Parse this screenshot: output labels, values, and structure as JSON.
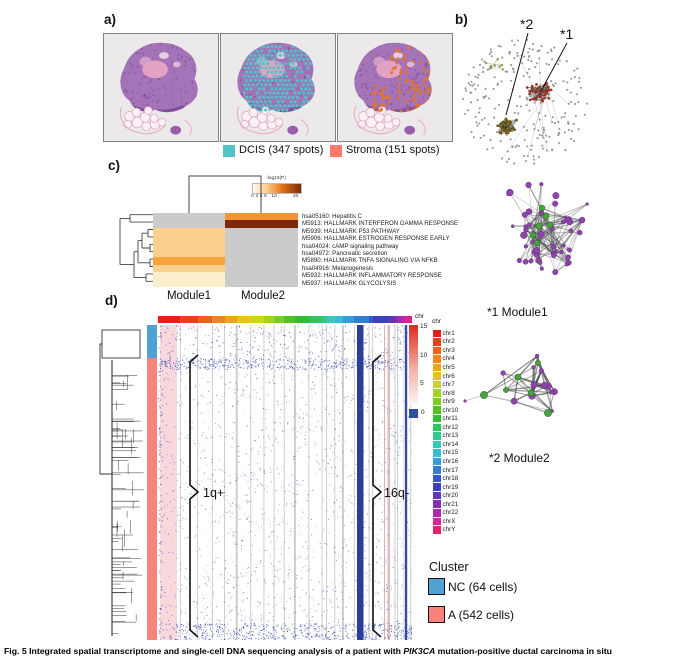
{
  "figure": {
    "caption_prefix": "Fig. 5 Integrated spatial transcriptome and single-cell DNA sequencing analysis of a patient with ",
    "caption_italic": "PIK3CA",
    "caption_suffix": " mutation-positive ductal carcinoma in situ"
  },
  "panel_a": {
    "label": "a)",
    "legend": [
      {
        "name": "DCIS",
        "label": "DCIS (347 spots)",
        "color": "#4FC4C6"
      },
      {
        "name": "Stroma",
        "label": "Stroma (151 spots)",
        "color": "#F9796E"
      }
    ]
  },
  "panel_b": {
    "label": "b)",
    "callout_1": "*1",
    "callout_2": "*2"
  },
  "panel_c": {
    "label": "c)",
    "colorbar": {
      "title": "-log10(P)",
      "ticks": [
        "0",
        "2",
        "4",
        "6",
        "10",
        "20"
      ]
    },
    "columns": [
      "Module1",
      "Module2"
    ],
    "na_color": "#CBCBCB",
    "rows": [
      {
        "label": "hsa05160: Hepatitis C",
        "module1": null,
        "module2": 8
      },
      {
        "label": "M5913: HALLMARK INTERFERON GAMMA RESPONSE",
        "module1": null,
        "module2": 20
      },
      {
        "label": "M5939: HALLMARK P53 PATHWAY",
        "module1": 4,
        "module2": null
      },
      {
        "label": "M5906: HALLMARK ESTROGEN RESPONSE EARLY",
        "module1": 4,
        "module2": null
      },
      {
        "label": "hsa04024: cAMP signaling pathway",
        "module1": 4,
        "module2": null
      },
      {
        "label": "hsa04972: Pancreatic secretion",
        "module1": 4,
        "module2": null
      },
      {
        "label": "M5890: HALLMARK TNFA SIGNALING VIA NFKB",
        "module1": 7,
        "module2": null
      },
      {
        "label": "hsa04916: Melanogenesis",
        "module1": 4,
        "module2": null
      },
      {
        "label": "M5932: HALLMARK INFLAMMATORY RESPONSE",
        "module1": 2,
        "module2": null
      },
      {
        "label": "M5937: HALLMARK GLYCOLYSIS",
        "module1": 2,
        "module2": null
      }
    ]
  },
  "panel_d": {
    "label": "d)",
    "chr_bar_label": "chr",
    "chr_legend_title": "chr",
    "annotation_1q": "1q+",
    "annotation_16q": "16q-",
    "scale": {
      "ticks": [
        "15",
        "10",
        "5"
      ],
      "zero_label": "0",
      "high_color": "#DF2B1B",
      "zero_color": "#2E4FA2"
    },
    "chromosomes": [
      {
        "label": "chr1",
        "color": "#E11F1C"
      },
      {
        "label": "chr2",
        "color": "#E8401B"
      },
      {
        "label": "chr3",
        "color": "#EF611A"
      },
      {
        "label": "chr4",
        "color": "#F4821A"
      },
      {
        "label": "chr5",
        "color": "#EFA51A"
      },
      {
        "label": "chr6",
        "color": "#E5C41B"
      },
      {
        "label": "chr7",
        "color": "#CCD71C"
      },
      {
        "label": "chr8",
        "color": "#A4D51D"
      },
      {
        "label": "chr9",
        "color": "#79CE1E"
      },
      {
        "label": "chr10",
        "color": "#4EC41F"
      },
      {
        "label": "chr11",
        "color": "#2FBE31"
      },
      {
        "label": "chr12",
        "color": "#2FC45F"
      },
      {
        "label": "chr13",
        "color": "#30C98D"
      },
      {
        "label": "chr14",
        "color": "#31CDBA"
      },
      {
        "label": "chr15",
        "color": "#32BFD1"
      },
      {
        "label": "chr16",
        "color": "#339ED6"
      },
      {
        "label": "chr17",
        "color": "#347CD0"
      },
      {
        "label": "chr18",
        "color": "#3557C9"
      },
      {
        "label": "chr19",
        "color": "#3E3EC2"
      },
      {
        "label": "chr20",
        "color": "#5F36BB"
      },
      {
        "label": "chr21",
        "color": "#8430B4"
      },
      {
        "label": "chr22",
        "color": "#AC2BA8"
      },
      {
        "label": "chrX",
        "color": "#D42690"
      },
      {
        "label": "chrY",
        "color": "#E7226B"
      }
    ],
    "cluster_legend": {
      "title": "Cluster",
      "items": [
        {
          "label": "NC (64 cells)",
          "color": "#4FA2D2"
        },
        {
          "label": "A (542 cells)",
          "color": "#F8837B"
        }
      ]
    }
  },
  "modules": [
    {
      "label": "*1 Module1",
      "node_color": "#8E44AD",
      "hub_color": "#48A43C"
    },
    {
      "label": "*2 Module2",
      "node_color": "#8E44AD",
      "hub_color": "#48A43C"
    }
  ]
}
